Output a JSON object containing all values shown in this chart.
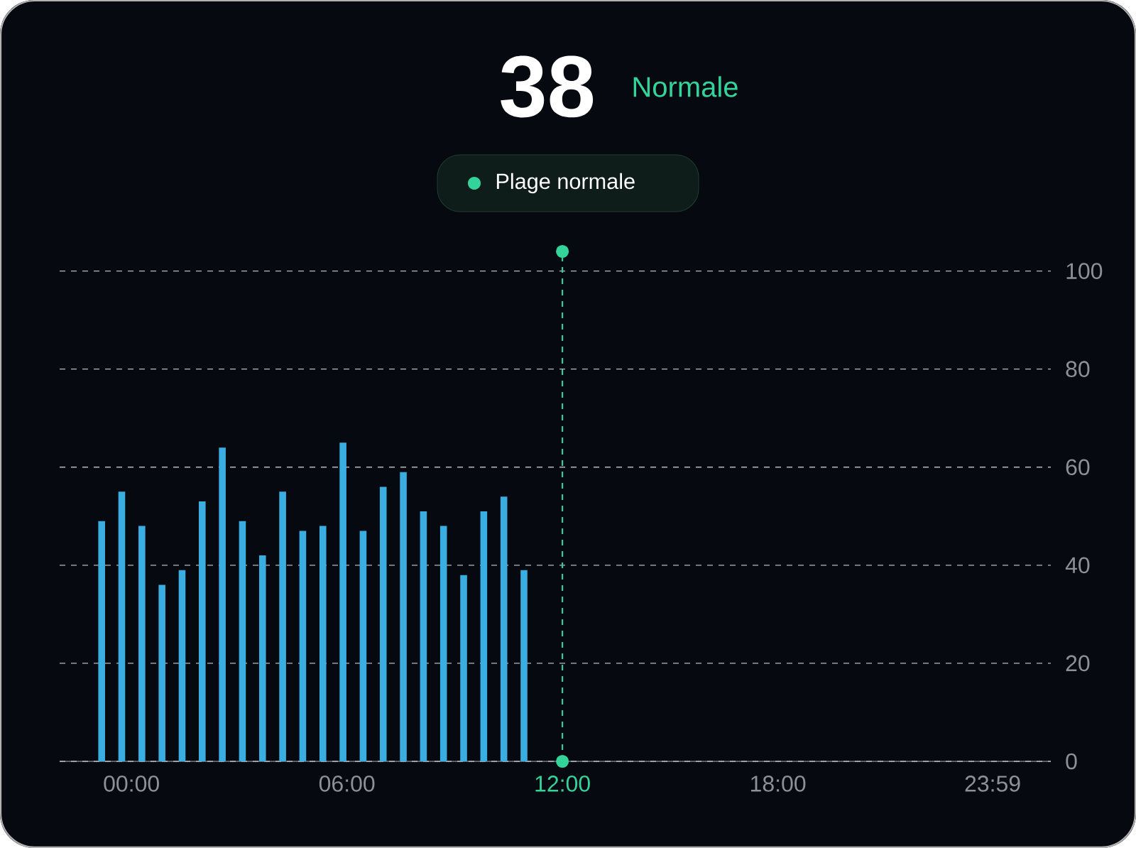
{
  "chart_data": {
    "type": "bar",
    "title": "38",
    "subtitle": "Normale",
    "annotations": [
      "Plage normale"
    ],
    "series": [
      {
        "color": "#3aaee0",
        "x": [
          -0.83,
          -0.27,
          0.29,
          0.85,
          1.41,
          1.97,
          2.53,
          3.09,
          3.65,
          4.21,
          4.77,
          5.33,
          5.89,
          6.45,
          7.01,
          7.57,
          8.13,
          8.69,
          9.25,
          9.81,
          10.37,
          10.93
        ],
        "values": [
          49,
          55,
          48,
          36,
          39,
          53,
          64,
          49,
          42,
          55,
          47,
          48,
          65,
          47,
          56,
          59,
          51,
          48,
          38,
          51,
          54,
          39
        ]
      },
      {
        "type": "line",
        "color": "#34d399",
        "x": [
          12,
          12
        ],
        "values": [
          0,
          104
        ],
        "marker": "circle",
        "line_style": "dashed"
      }
    ],
    "xlim": [
      -2,
      25.6
    ],
    "ylim": [
      0,
      104
    ],
    "xticks": [
      {
        "value": 0,
        "label": "00:00"
      },
      {
        "value": 6,
        "label": "06:00"
      },
      {
        "value": 12,
        "label": "12:00"
      },
      {
        "value": 18,
        "label": "18:00"
      },
      {
        "value": 23.98,
        "label": "23:59"
      }
    ],
    "yticks": [
      0,
      20,
      40,
      60,
      80,
      100
    ],
    "grid": "y"
  }
}
